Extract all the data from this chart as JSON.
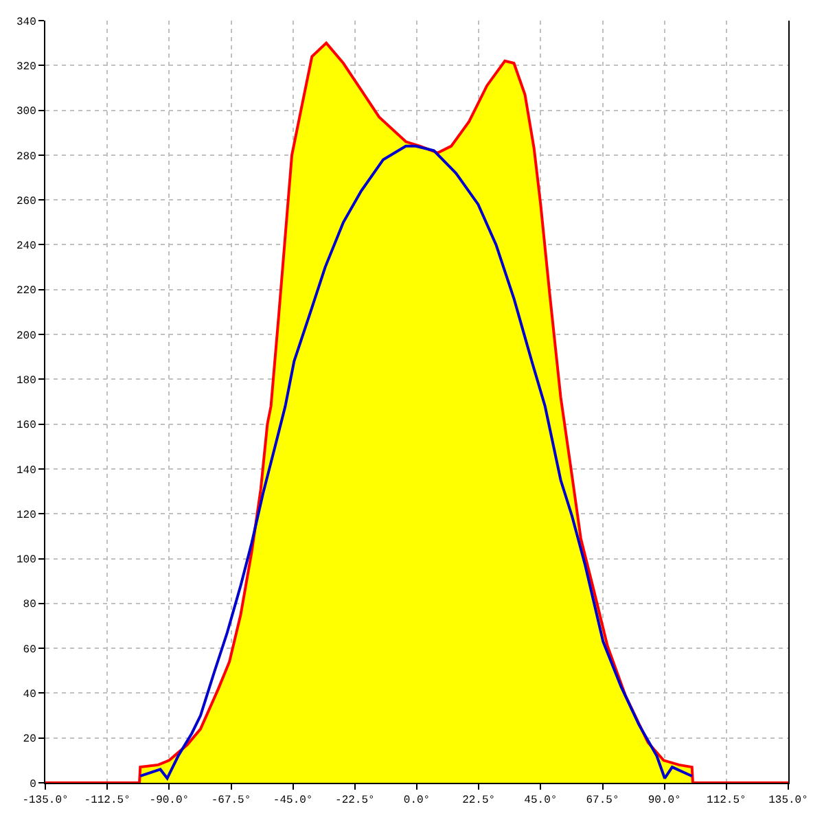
{
  "chart_data": {
    "type": "area",
    "xlim": [
      -135,
      135
    ],
    "xticks": [
      {
        "value": -135,
        "label": "-135.0°"
      },
      {
        "value": -112.5,
        "label": "-112.5°"
      },
      {
        "value": -90,
        "label": "-90.0°"
      },
      {
        "value": -67.5,
        "label": "-67.5°"
      },
      {
        "value": -45,
        "label": "-45.0°"
      },
      {
        "value": -22.5,
        "label": "-22.5°"
      },
      {
        "value": 0,
        "label": "0.0°"
      },
      {
        "value": 22.5,
        "label": "22.5°"
      },
      {
        "value": 45,
        "label": "45.0°"
      },
      {
        "value": 67.5,
        "label": "67.5°"
      },
      {
        "value": 90,
        "label": "90.0°"
      },
      {
        "value": 112.5,
        "label": "112.5°"
      },
      {
        "value": 135,
        "label": "135.0°"
      }
    ],
    "ylim": [
      0,
      340
    ],
    "yticks": [
      0,
      20,
      40,
      60,
      80,
      100,
      120,
      140,
      160,
      180,
      200,
      220,
      240,
      260,
      280,
      300,
      320,
      340
    ],
    "grid": true,
    "marker": "none",
    "line_style": "solid",
    "series": [
      {
        "color": "#ffff00",
        "x": [
          -100.5,
          -94,
          -90,
          -83.4,
          -78.6,
          -72.1,
          -68.1,
          -64,
          -60,
          -56.7,
          -54.3,
          -53,
          -50.2,
          -47.8,
          -45.4,
          -42.1,
          -38.1,
          -32.9,
          -26.7,
          -20.2,
          -13.7,
          -4,
          1.2,
          7.6,
          12.5,
          19,
          25.5,
          32,
          35.3,
          39.3,
          42.6,
          45,
          48.3,
          52.3,
          56.4,
          59.6,
          64.5,
          69.3,
          75.8,
          84,
          89.7,
          95.3,
          100
        ],
        "values": [
          7,
          8,
          10,
          17,
          24,
          42,
          54,
          75,
          103,
          131,
          160,
          168,
          208,
          244,
          280,
          300,
          324,
          330,
          321,
          309,
          297,
          286,
          284,
          281,
          284,
          295,
          311,
          322,
          321,
          307,
          283,
          258,
          218,
          172,
          137,
          109,
          85,
          61,
          39,
          18,
          10,
          8,
          7
        ]
      },
      {
        "type": "line",
        "color": "#ff0000",
        "x": [
          -135,
          -100.8,
          -100.5,
          -94,
          -90,
          -83.4,
          -78.6,
          -72.1,
          -68.1,
          -64,
          -60,
          -56.7,
          -54.3,
          -53,
          -50.2,
          -47.8,
          -45.4,
          -42.1,
          -38.1,
          -32.9,
          -26.7,
          -20.2,
          -13.7,
          -4,
          1.2,
          7.6,
          12.5,
          19,
          25.5,
          32,
          35.3,
          39.3,
          42.6,
          45,
          48.3,
          52.3,
          56.4,
          59.6,
          64.5,
          69.3,
          75.8,
          84,
          89.7,
          95.3,
          100,
          100.3,
          135
        ],
        "values": [
          0,
          0,
          7,
          8,
          10,
          17,
          24,
          42,
          54,
          75,
          103,
          131,
          160,
          168,
          208,
          244,
          280,
          300,
          324,
          330,
          321,
          309,
          297,
          286,
          284,
          281,
          284,
          295,
          311,
          322,
          321,
          307,
          283,
          258,
          218,
          172,
          137,
          109,
          85,
          61,
          39,
          18,
          10,
          8,
          7,
          0,
          0
        ]
      },
      {
        "type": "line",
        "color": "#0000cc",
        "x": [
          -100.5,
          -93.2,
          -90.7,
          -86.7,
          -81.8,
          -78.6,
          -73.7,
          -68.9,
          -64,
          -60,
          -55.9,
          -51.1,
          -47.8,
          -44.6,
          -38.1,
          -33.3,
          -26.7,
          -20.2,
          -12.2,
          -4,
          -0.4,
          6.2,
          14.2,
          22.3,
          28.8,
          35.3,
          41.8,
          46.6,
          52.3,
          56.4,
          61.2,
          67.7,
          74.2,
          80.7,
          87.2,
          90.1,
          92.8,
          100
        ],
        "values": [
          3,
          6,
          2,
          12,
          22,
          30,
          49,
          67,
          88,
          107,
          129,
          152,
          168,
          188,
          212,
          230,
          250,
          264,
          278,
          284,
          284,
          282,
          272,
          258,
          240,
          216,
          188,
          168,
          135,
          119,
          97,
          63,
          43,
          26,
          12,
          2,
          7,
          3
        ]
      }
    ]
  }
}
